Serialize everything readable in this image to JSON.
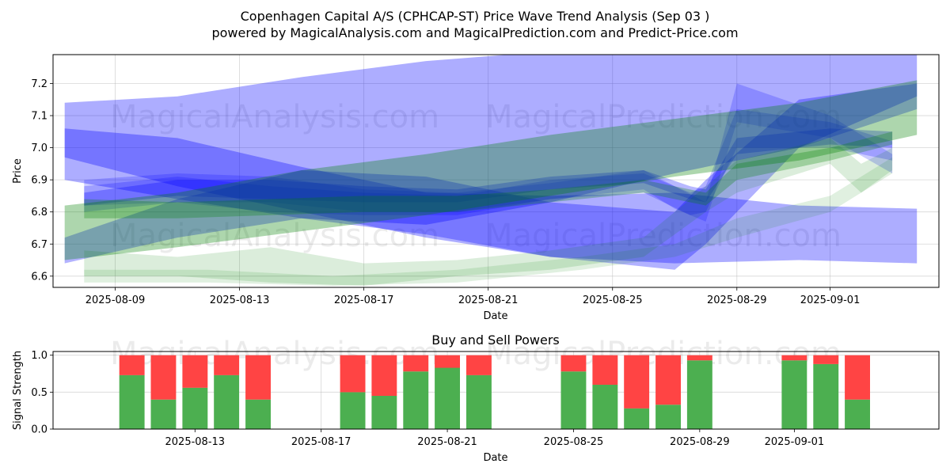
{
  "chart_data": [
    {
      "type": "area",
      "title": "Copenhagen Capital A/S (CPHCAP-ST) Price Wave Trend Analysis (Sep 03 )",
      "subtitle": "powered by MagicalAnalysis.com and MagicalPrediction.com and Predict-Price.com",
      "xlabel": "Date",
      "ylabel": "Price",
      "x_ticks": [
        "2025-08-09",
        "2025-08-13",
        "2025-08-17",
        "2025-08-21",
        "2025-08-25",
        "2025-08-29",
        "2025-09-01"
      ],
      "y_ticks": [
        6.6,
        6.7,
        6.8,
        6.9,
        7.0,
        7.1,
        7.2
      ],
      "xlim": [
        "2025-08-07T00:00",
        "2025-09-04T12:00"
      ],
      "ylim": [
        6.565,
        7.29
      ],
      "grid": true,
      "watermarks": [
        "MagicalAnalysis.com",
        "MagicalPrediction.com"
      ],
      "series": [
        {
          "color": "#0000ff",
          "opacity": 0.32,
          "x": [
            "2025-08-07T09:00",
            "2025-08-11",
            "2025-08-15",
            "2025-08-19",
            "2025-08-23",
            "2025-08-27",
            "2025-08-31",
            "2025-09-03T19:00"
          ],
          "upper": [
            7.14,
            7.16,
            7.22,
            7.27,
            7.3,
            7.33,
            7.33,
            7.3
          ],
          "lower": [
            6.9,
            6.84,
            6.78,
            6.76,
            6.83,
            6.92,
            7.0,
            7.16
          ]
        },
        {
          "color": "#0000ff",
          "opacity": 0.32,
          "x": [
            "2025-08-07T09:00",
            "2025-08-11",
            "2025-08-15",
            "2025-08-19",
            "2025-08-23",
            "2025-08-27",
            "2025-08-31",
            "2025-09-03T19:00"
          ],
          "upper": [
            7.06,
            7.03,
            6.94,
            6.86,
            6.85,
            6.86,
            6.82,
            6.81
          ],
          "lower": [
            6.97,
            6.88,
            6.8,
            6.72,
            6.66,
            6.64,
            6.65,
            6.64
          ]
        },
        {
          "color": "#0000ff",
          "opacity": 0.3,
          "x": [
            "2025-08-07T09:00",
            "2025-08-11",
            "2025-08-15",
            "2025-08-19",
            "2025-08-23",
            "2025-08-27",
            "2025-08-28",
            "2025-08-31",
            "2025-09-03T19:00"
          ],
          "upper": [
            6.72,
            6.84,
            6.93,
            6.91,
            6.83,
            6.8,
            6.9,
            7.15,
            7.2
          ],
          "lower": [
            6.64,
            6.72,
            6.78,
            6.73,
            6.66,
            6.62,
            6.7,
            7.0,
            7.12
          ]
        },
        {
          "color": "#0000ff",
          "opacity": 0.28,
          "x": [
            "2025-08-08",
            "2025-08-11",
            "2025-08-14",
            "2025-08-17",
            "2025-08-20",
            "2025-08-23",
            "2025-08-26",
            "2025-08-27T12:00",
            "2025-08-28",
            "2025-08-29",
            "2025-09-01",
            "2025-09-03"
          ],
          "upper": [
            6.86,
            6.9,
            6.9,
            6.88,
            6.87,
            6.91,
            6.93,
            6.88,
            6.87,
            7.03,
            7.06,
            7.05
          ],
          "lower": [
            6.82,
            6.85,
            6.84,
            6.83,
            6.83,
            6.87,
            6.89,
            6.84,
            6.83,
            6.98,
            7.01,
            7.0
          ]
        },
        {
          "color": "#0000ff",
          "opacity": 0.22,
          "x": [
            "2025-08-08",
            "2025-08-11",
            "2025-08-14",
            "2025-08-17",
            "2025-08-20",
            "2025-08-23",
            "2025-08-26",
            "2025-08-27T12:00",
            "2025-08-28",
            "2025-08-29",
            "2025-09-01",
            "2025-09-03"
          ],
          "upper": [
            6.88,
            6.91,
            6.88,
            6.86,
            6.85,
            6.9,
            6.92,
            6.86,
            6.88,
            7.12,
            7.08,
            7.02
          ],
          "lower": [
            6.8,
            6.83,
            6.8,
            6.79,
            6.79,
            6.84,
            6.86,
            6.79,
            6.8,
            7.0,
            7.0,
            6.96
          ]
        },
        {
          "color": "#0000ff",
          "opacity": 0.2,
          "x": [
            "2025-08-08",
            "2025-08-11",
            "2025-08-14",
            "2025-08-17",
            "2025-08-20",
            "2025-08-23",
            "2025-08-26",
            "2025-08-27",
            "2025-08-28",
            "2025-08-29",
            "2025-09-01",
            "2025-09-03"
          ],
          "upper": [
            6.9,
            6.92,
            6.91,
            6.87,
            6.86,
            6.89,
            6.93,
            6.88,
            6.83,
            7.2,
            7.1,
            6.98
          ],
          "lower": [
            6.82,
            6.83,
            6.83,
            6.8,
            6.8,
            6.84,
            6.87,
            6.81,
            6.77,
            7.08,
            7.03,
            6.92
          ]
        },
        {
          "color": "#008000",
          "opacity": 0.32,
          "x": [
            "2025-08-07T09:00",
            "2025-08-11",
            "2025-08-15",
            "2025-08-19",
            "2025-08-23",
            "2025-08-27",
            "2025-08-31",
            "2025-09-03T19:00"
          ],
          "upper": [
            6.82,
            6.86,
            6.93,
            6.98,
            7.04,
            7.09,
            7.14,
            7.21
          ],
          "lower": [
            6.65,
            6.69,
            6.74,
            6.79,
            6.85,
            6.91,
            6.96,
            7.04
          ]
        },
        {
          "color": "#008000",
          "opacity": 0.28,
          "x": [
            "2025-08-08",
            "2025-08-11",
            "2025-08-14",
            "2025-08-17",
            "2025-08-20",
            "2025-08-23",
            "2025-08-26",
            "2025-08-28",
            "2025-08-29",
            "2025-09-01",
            "2025-09-03"
          ],
          "upper": [
            6.84,
            6.83,
            6.84,
            6.85,
            6.85,
            6.87,
            6.9,
            6.86,
            6.95,
            7.0,
            7.05
          ],
          "lower": [
            6.78,
            6.78,
            6.79,
            6.8,
            6.8,
            6.83,
            6.86,
            6.82,
            6.9,
            6.96,
            7.01
          ]
        },
        {
          "color": "#008000",
          "opacity": 0.14,
          "x": [
            "2025-08-08",
            "2025-08-11",
            "2025-08-14",
            "2025-08-17",
            "2025-08-20",
            "2025-08-23",
            "2025-08-26",
            "2025-08-28",
            "2025-08-29",
            "2025-09-01",
            "2025-09-02",
            "2025-09-03"
          ],
          "upper": [
            6.68,
            6.66,
            6.69,
            6.64,
            6.65,
            6.68,
            6.72,
            6.88,
            6.96,
            7.03,
            6.95,
            7.0
          ],
          "lower": [
            6.6,
            6.6,
            6.58,
            6.57,
            6.6,
            6.62,
            6.66,
            6.8,
            6.86,
            6.95,
            6.86,
            6.93
          ]
        },
        {
          "color": "#008000",
          "opacity": 0.12,
          "x": [
            "2025-08-08",
            "2025-08-12",
            "2025-08-16",
            "2025-08-20",
            "2025-08-24",
            "2025-08-27",
            "2025-08-29",
            "2025-09-01",
            "2025-09-03"
          ],
          "upper": [
            6.62,
            6.62,
            6.6,
            6.62,
            6.66,
            6.7,
            6.78,
            6.85,
            6.97
          ],
          "lower": [
            6.58,
            6.58,
            6.57,
            6.58,
            6.62,
            6.66,
            6.72,
            6.8,
            6.92
          ]
        }
      ]
    },
    {
      "type": "bar",
      "title": "Buy and Sell Powers",
      "xlabel": "Date",
      "ylabel": "Signal Strength",
      "x_ticks": [
        "2025-08-13",
        "2025-08-17",
        "2025-08-21",
        "2025-08-25",
        "2025-08-29",
        "2025-09-01"
      ],
      "y_ticks": [
        0.0,
        0.5,
        1.0
      ],
      "xlim": [
        "2025-08-08T12:00",
        "2025-09-05T14:00"
      ],
      "ylim": [
        0,
        1.05
      ],
      "grid": true,
      "watermarks": [
        "MagicalAnalysis.com",
        "MagicalPrediction.com"
      ],
      "categories": [
        "2025-08-11",
        "2025-08-12",
        "2025-08-13",
        "2025-08-14",
        "2025-08-15",
        "2025-08-18",
        "2025-08-19",
        "2025-08-20",
        "2025-08-21",
        "2025-08-22",
        "2025-08-25",
        "2025-08-26",
        "2025-08-27",
        "2025-08-28",
        "2025-08-29",
        "2025-09-01",
        "2025-09-02",
        "2025-09-03"
      ],
      "series": [
        {
          "color": "#4caf50",
          "values": [
            0.73,
            0.4,
            0.56,
            0.73,
            0.4,
            0.5,
            0.45,
            0.78,
            0.83,
            0.73,
            0.78,
            0.6,
            0.28,
            0.33,
            0.93,
            0.93,
            0.88,
            0.4
          ]
        },
        {
          "color": "#ff4444",
          "values": [
            0.27,
            0.6,
            0.44,
            0.27,
            0.6,
            0.5,
            0.55,
            0.22,
            0.17,
            0.27,
            0.22,
            0.4,
            0.72,
            0.67,
            0.07,
            0.07,
            0.12,
            0.6
          ]
        }
      ]
    }
  ]
}
